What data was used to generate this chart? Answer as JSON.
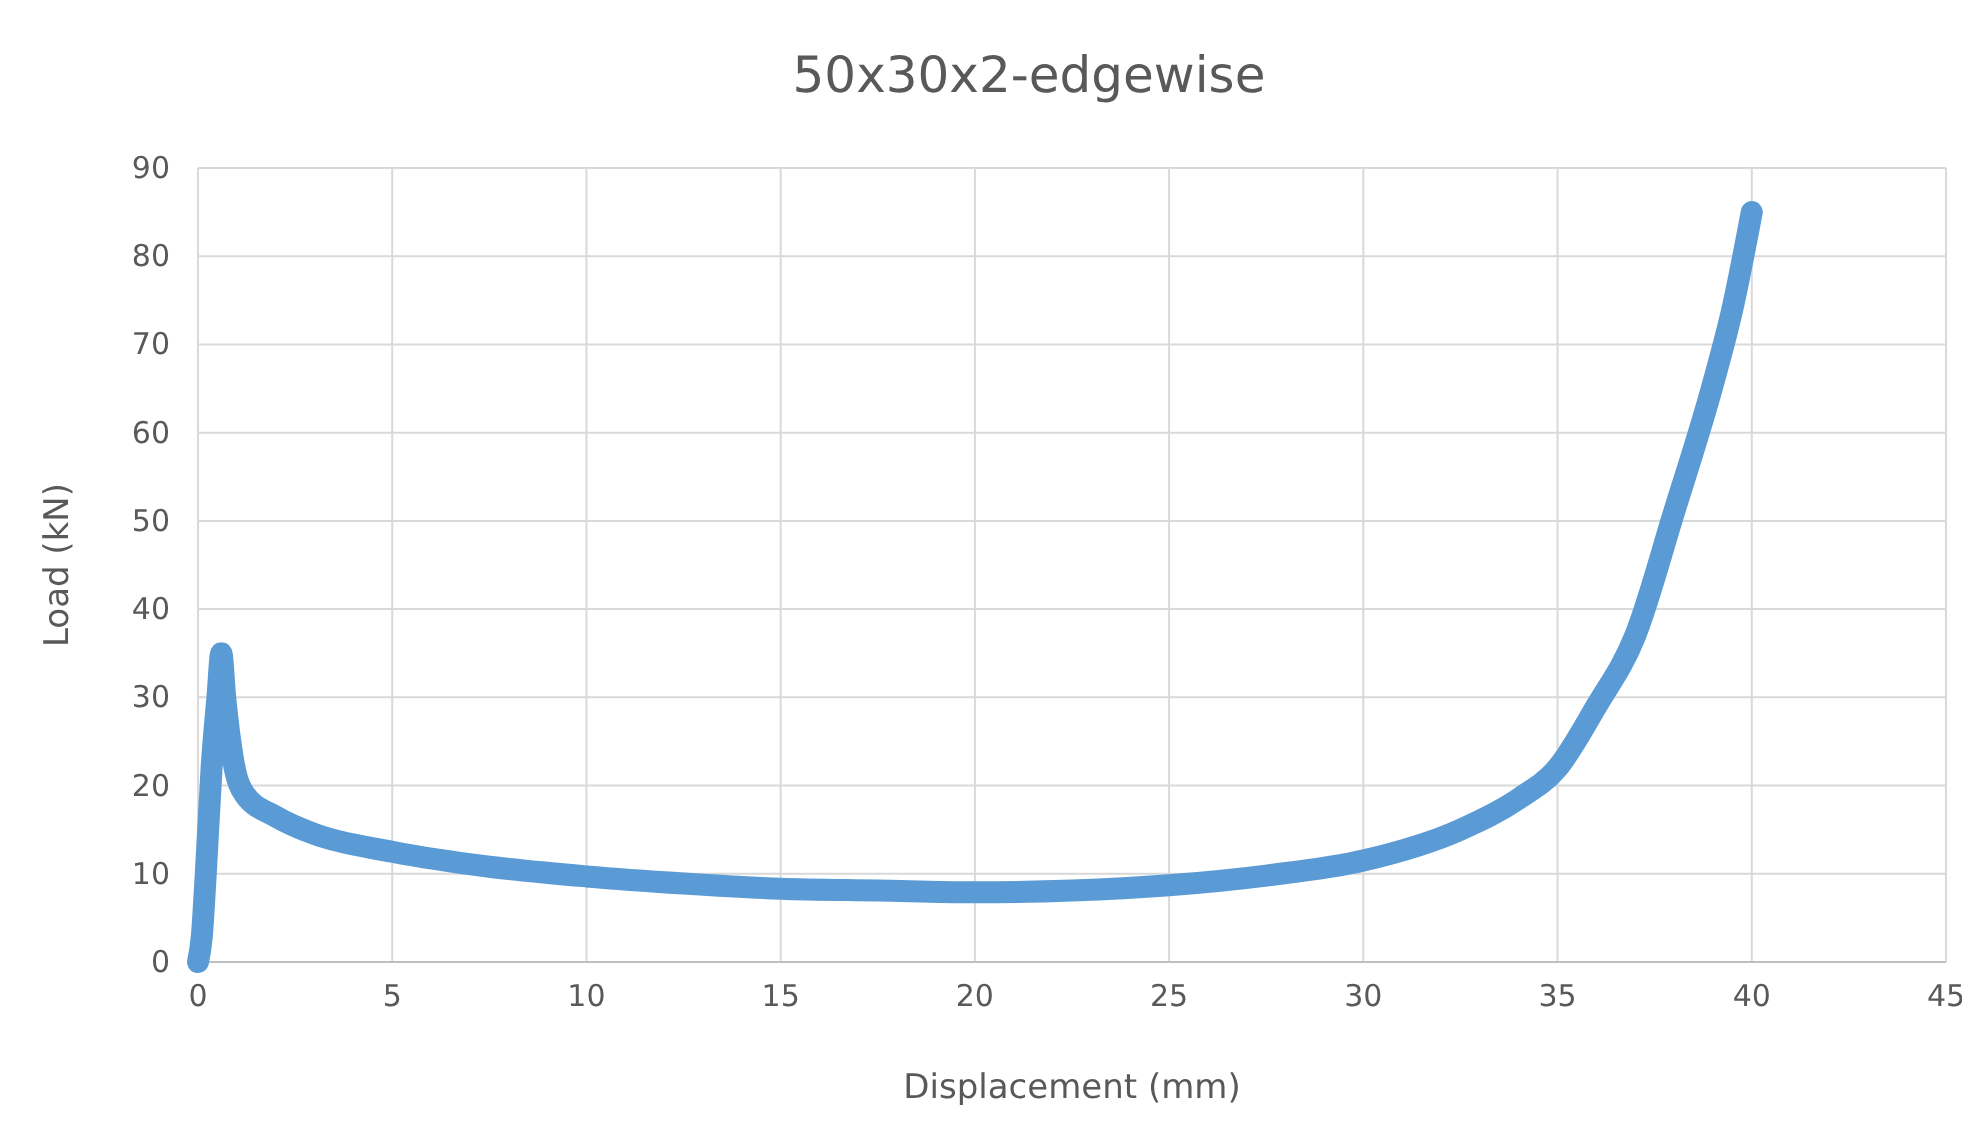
{
  "chart_data": {
    "type": "line",
    "title": "50x30x2-edgewise",
    "xlabel": "Displacement (mm)",
    "ylabel": "Load (kN)",
    "xlim": [
      0,
      45
    ],
    "xticks": [
      0,
      5,
      10,
      15,
      20,
      25,
      30,
      35,
      40,
      45
    ],
    "ylim": [
      0,
      90
    ],
    "yticks": [
      0,
      10,
      20,
      30,
      40,
      50,
      60,
      70,
      80,
      90
    ],
    "grid": true,
    "line_style": "solid",
    "series": [
      {
        "color": "#5b9bd5",
        "x": [
          0,
          0.1,
          0.2,
          0.35,
          0.5,
          0.6,
          0.7,
          0.9,
          1.2,
          2,
          3,
          5,
          7.5,
          10,
          12.5,
          15,
          17.5,
          20,
          22.5,
          25,
          27.5,
          30,
          32.5,
          34,
          35,
          36,
          37,
          38,
          39,
          39.5,
          40
        ],
        "values": [
          0,
          3,
          10,
          22,
          30,
          35,
          30,
          23,
          19,
          16.5,
          14.5,
          12.5,
          10.8,
          9.7,
          8.9,
          8.3,
          8.1,
          7.9,
          8.1,
          8.7,
          9.8,
          11.5,
          15,
          18.5,
          22,
          29,
          37,
          51,
          65.5,
          74,
          85
        ]
      }
    ]
  }
}
